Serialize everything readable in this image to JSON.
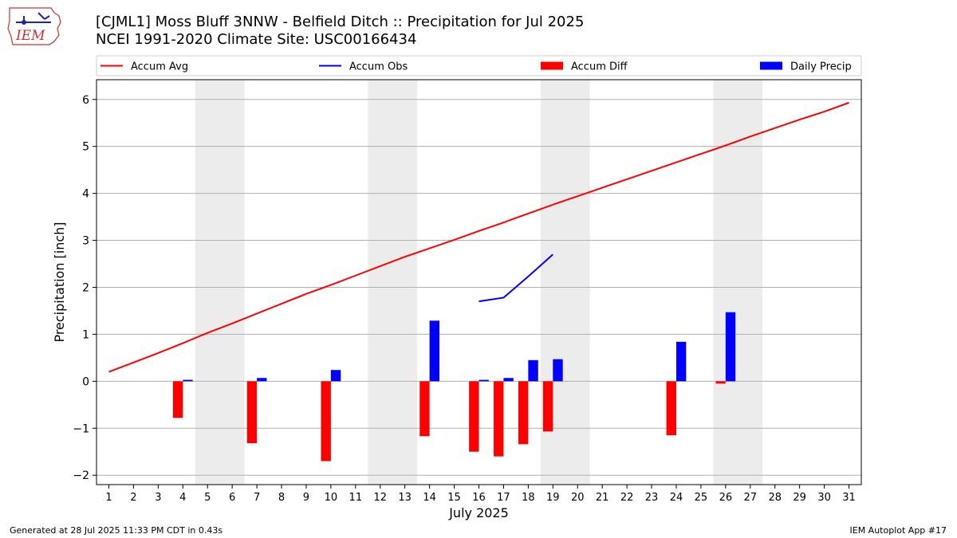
{
  "title": "[CJML1] Moss Bluff 3NNW - Belfield Ditch :: Precipitation for Jul 2025",
  "subtitle": "NCEI 1991-2020 Climate Site: USC00166434",
  "logo_text": "IEM",
  "footer": {
    "generated": "Generated at 28 Jul 2025 11:33 PM CDT in 0.43s",
    "app": "IEM Autoplot App #17"
  },
  "colors": {
    "avg": "#ff0000",
    "obs": "#0000ff",
    "diff": "#ff0000",
    "daily": "#0000ff",
    "weekend_band": "#ececec",
    "grid": "#b0b0b0"
  },
  "chart_data": {
    "type": "bar",
    "xlabel": "July 2025",
    "ylabel": "Precipitation [inch]",
    "xlim": [
      0.5,
      31.5
    ],
    "ylim": [
      -2.2,
      6.42
    ],
    "yticks": [
      -2,
      -1,
      0,
      1,
      2,
      3,
      4,
      5,
      6
    ],
    "xticks": [
      1,
      2,
      3,
      4,
      5,
      6,
      7,
      8,
      9,
      10,
      11,
      12,
      13,
      14,
      15,
      16,
      17,
      18,
      19,
      20,
      21,
      22,
      23,
      24,
      25,
      26,
      27,
      28,
      29,
      30,
      31
    ],
    "grid": "horizontal",
    "legend_placement": "top",
    "weekend_bands": [
      [
        4.5,
        6.5
      ],
      [
        11.5,
        13.5
      ],
      [
        18.5,
        20.5
      ],
      [
        25.5,
        27.5
      ]
    ],
    "series": [
      {
        "name": "Accum Avg",
        "kind": "line",
        "x": [
          1,
          2,
          3,
          4,
          5,
          6,
          7,
          8,
          9,
          10,
          11,
          12,
          13,
          14,
          15,
          16,
          17,
          18,
          19,
          20,
          21,
          22,
          23,
          24,
          25,
          26,
          27,
          28,
          29,
          30,
          31
        ],
        "values": [
          0.2,
          0.4,
          0.6,
          0.81,
          1.03,
          1.23,
          1.44,
          1.65,
          1.86,
          2.05,
          2.25,
          2.45,
          2.65,
          2.83,
          3.01,
          3.2,
          3.38,
          3.57,
          3.76,
          3.94,
          4.12,
          4.3,
          4.48,
          4.66,
          4.84,
          5.02,
          5.21,
          5.39,
          5.57,
          5.74,
          5.93
        ]
      },
      {
        "name": "Accum Obs",
        "kind": "line",
        "x": [
          16,
          17,
          18,
          19
        ],
        "values": [
          1.7,
          1.78,
          2.23,
          2.7
        ]
      },
      {
        "name": "Accum Diff",
        "kind": "bar",
        "x": [
          4,
          7,
          10,
          14,
          16,
          17,
          18,
          19,
          24,
          26
        ],
        "values": [
          -0.78,
          -1.32,
          -1.7,
          -1.17,
          -1.5,
          -1.6,
          -1.34,
          -1.07,
          -1.15,
          -0.05
        ]
      },
      {
        "name": "Daily Precip",
        "kind": "bar",
        "x": [
          4,
          7,
          10,
          14,
          16,
          17,
          18,
          19,
          24,
          26
        ],
        "values": [
          0.03,
          0.07,
          0.24,
          1.29,
          0.03,
          0.07,
          0.45,
          0.47,
          0.84,
          1.47
        ]
      }
    ]
  }
}
